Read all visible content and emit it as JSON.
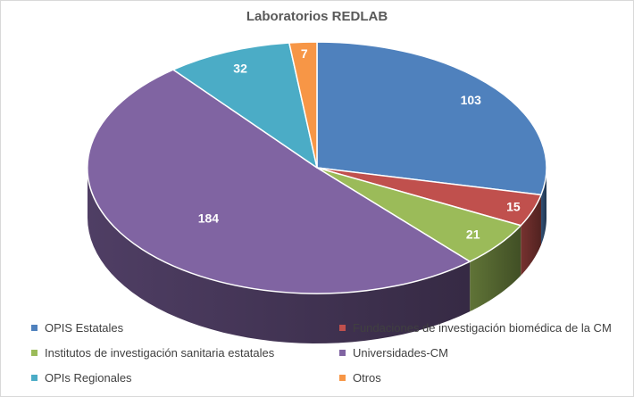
{
  "chart_data": {
    "type": "pie",
    "style": "3d",
    "title": "Laboratorios REDLAB",
    "slices": [
      {
        "name": "OPIS Estatales",
        "value": 103,
        "color": "#4F81BD"
      },
      {
        "name": "Fundaciones de investigación biomédica de la CM",
        "value": 15,
        "color": "#C0504D"
      },
      {
        "name": "Institutos de investigación sanitaria estatales",
        "value": 21,
        "color": "#9BBB59"
      },
      {
        "name": "Universidades-CM",
        "value": 184,
        "color": "#8064A2"
      },
      {
        "name": "OPIs Regionales",
        "value": 32,
        "color": "#4BACC6"
      },
      {
        "name": "Otros",
        "value": 7,
        "color": "#F79646"
      }
    ],
    "legend_position": "bottom"
  }
}
